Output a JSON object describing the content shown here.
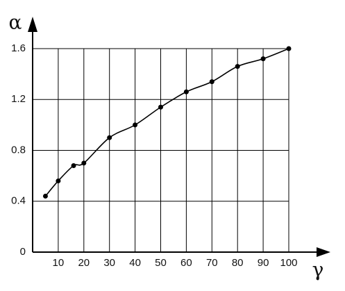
{
  "chart_data": {
    "type": "line",
    "x_label": "γ",
    "y_label": "α",
    "x": [
      5,
      10,
      16,
      20,
      30,
      40,
      50,
      60,
      70,
      80,
      90,
      100
    ],
    "series": [
      {
        "color": "#000000",
        "values": [
          0.44,
          0.56,
          0.68,
          0.7,
          0.9,
          1.0,
          1.14,
          1.26,
          1.34,
          1.46,
          1.52,
          1.6
        ]
      }
    ],
    "xlim": [
      0,
      100
    ],
    "ylim": [
      0,
      1.6
    ],
    "xticks": [
      10,
      20,
      30,
      40,
      50,
      60,
      70,
      80,
      90,
      100
    ],
    "yticks": [
      0,
      0.4,
      0.8,
      1.2,
      1.6
    ],
    "grid": true
  }
}
